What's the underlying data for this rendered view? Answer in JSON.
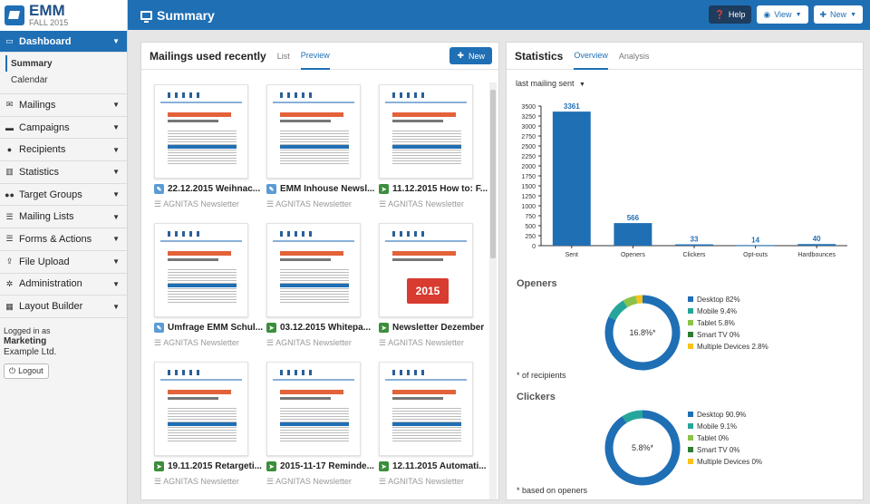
{
  "app": {
    "title": "EMM",
    "subtitle": "FALL 2015"
  },
  "topbar": {
    "title": "Summary",
    "help": "Help",
    "view": "View",
    "new": "New"
  },
  "sidebar": {
    "items": [
      {
        "label": "Dashboard",
        "icon": "monitor-icon"
      },
      {
        "label": "Mailings",
        "icon": "envelope-icon"
      },
      {
        "label": "Campaigns",
        "icon": "campaign-icon"
      },
      {
        "label": "Recipients",
        "icon": "user-icon"
      },
      {
        "label": "Statistics",
        "icon": "bar-chart-icon"
      },
      {
        "label": "Target Groups",
        "icon": "group-icon"
      },
      {
        "label": "Mailing Lists",
        "icon": "list-icon"
      },
      {
        "label": "Forms & Actions",
        "icon": "form-icon"
      },
      {
        "label": "File Upload",
        "icon": "upload-icon"
      },
      {
        "label": "Administration",
        "icon": "gear-icon"
      },
      {
        "label": "Layout Builder",
        "icon": "grid-icon"
      }
    ],
    "sub": [
      "Summary",
      "Calendar"
    ],
    "login": {
      "label": "Logged in as",
      "user": "Marketing",
      "org": "Example Ltd.",
      "logout": "Logout"
    }
  },
  "mailings": {
    "title": "Mailings used recently",
    "tabs": [
      "List",
      "Preview"
    ],
    "new": "New",
    "cards": [
      {
        "title": "22.12.2015 Weihnac...",
        "list": "AGNITAS Newsletter",
        "status": "draft"
      },
      {
        "title": "EMM Inhouse Newsl...",
        "list": "AGNITAS Newsletter",
        "status": "draft"
      },
      {
        "title": "11.12.2015 How to: F...",
        "list": "AGNITAS Newsletter",
        "status": "sent"
      },
      {
        "title": "Umfrage EMM Schul...",
        "list": "AGNITAS Newsletter",
        "status": "draft"
      },
      {
        "title": "03.12.2015 Whitepa...",
        "list": "AGNITAS Newsletter",
        "status": "sent"
      },
      {
        "title": "Newsletter Dezember",
        "list": "AGNITAS Newsletter",
        "status": "sent"
      },
      {
        "title": "19.11.2015 Retargeti...",
        "list": "AGNITAS Newsletter",
        "status": "sent"
      },
      {
        "title": "2015-11-17 Reminde...",
        "list": "AGNITAS Newsletter",
        "status": "sent"
      },
      {
        "title": "12.11.2015 Automati...",
        "list": "AGNITAS Newsletter",
        "status": "sent"
      }
    ],
    "calendar_year": "2015"
  },
  "statistics": {
    "title": "Statistics",
    "tabs": [
      "Overview",
      "Analysis"
    ],
    "dropdown": "last mailing sent",
    "openers_title": "Openers",
    "openers_note": "* of recipients",
    "clickers_title": "Clickers",
    "clickers_note": "* based on openers",
    "colors": {
      "desktop": "#1f6fb5",
      "mobile": "#26a69a",
      "tablet": "#8bc34a",
      "smarttv": "#2e7d32",
      "multiple": "#f9c21a"
    }
  },
  "chart_data": [
    {
      "type": "bar",
      "categories": [
        "Sent",
        "Openers",
        "Clickers",
        "Opt-outs",
        "Hardbounces"
      ],
      "values": [
        3361,
        566,
        33,
        14,
        40
      ],
      "ylim": [
        0,
        3500
      ],
      "yticks": [
        0,
        250,
        500,
        750,
        1000,
        1250,
        1500,
        1750,
        2000,
        2250,
        2500,
        2750,
        3000,
        3250,
        3500
      ],
      "xlabel": "",
      "ylabel": "",
      "grid": false
    },
    {
      "type": "pie",
      "title": "Openers",
      "center_label": "16.8%*",
      "labels": [
        "Desktop 82%",
        "Mobile 9.4%",
        "Tablet 5.8%",
        "Smart TV 0%",
        "Multiple Devices 2.8%"
      ],
      "values": [
        82,
        9.4,
        5.8,
        0,
        2.8
      ],
      "legend": "right"
    },
    {
      "type": "pie",
      "title": "Clickers",
      "center_label": "5.8%*",
      "labels": [
        "Desktop 90.9%",
        "Mobile 9.1%",
        "Tablet 0%",
        "Smart TV 0%",
        "Multiple Devices 0%"
      ],
      "values": [
        90.9,
        9.1,
        0,
        0,
        0
      ],
      "legend": "right"
    }
  ]
}
